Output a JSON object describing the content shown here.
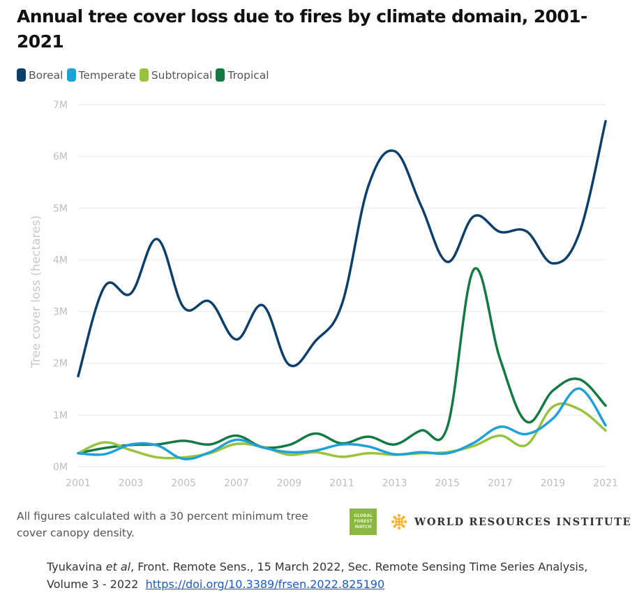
{
  "title": "Annual tree cover loss due to fires by climate domain, 2001-2021",
  "legend": [
    {
      "label": "Boreal",
      "color": "#0d3f6b"
    },
    {
      "label": "Temperate",
      "color": "#1ea0d8"
    },
    {
      "label": "Subtropical",
      "color": "#97c33d"
    },
    {
      "label": "Tropical",
      "color": "#147a44"
    }
  ],
  "chart_data": {
    "type": "line",
    "title": "Annual tree cover loss due to fires by climate domain, 2001-2021",
    "xlabel": "",
    "ylabel": "Tree cover loss (hectares)",
    "ylim": [
      0,
      7000000
    ],
    "y_ticks": [
      0,
      1000000,
      2000000,
      3000000,
      4000000,
      5000000,
      6000000,
      7000000
    ],
    "y_tick_labels": [
      "0M",
      "1M",
      "2M",
      "3M",
      "4M",
      "5M",
      "6M",
      "7M"
    ],
    "x": [
      2001,
      2002,
      2003,
      2004,
      2005,
      2006,
      2007,
      2008,
      2009,
      2010,
      2011,
      2012,
      2013,
      2014,
      2015,
      2016,
      2017,
      2018,
      2019,
      2020,
      2021
    ],
    "x_tick_labels": [
      "2001",
      "2003",
      "2005",
      "2007",
      "2009",
      "2011",
      "2013",
      "2015",
      "2017",
      "2019",
      "2021"
    ],
    "grid": true,
    "legend_position": "top-left",
    "series": [
      {
        "name": "Boreal",
        "color": "#0d3f6b",
        "values": [
          1750000,
          3480000,
          3350000,
          4400000,
          3080000,
          3190000,
          2460000,
          3120000,
          1970000,
          2430000,
          3140000,
          5420000,
          6100000,
          5050000,
          3960000,
          4840000,
          4540000,
          4550000,
          3930000,
          4510000,
          6680000
        ]
      },
      {
        "name": "Temperate",
        "color": "#1ea0d8",
        "values": [
          260000,
          240000,
          430000,
          410000,
          150000,
          280000,
          520000,
          370000,
          280000,
          310000,
          430000,
          390000,
          240000,
          280000,
          260000,
          460000,
          770000,
          630000,
          930000,
          1510000,
          800000
        ]
      },
      {
        "name": "Subtropical",
        "color": "#97c33d",
        "values": [
          260000,
          470000,
          320000,
          180000,
          180000,
          260000,
          440000,
          380000,
          230000,
          280000,
          190000,
          260000,
          230000,
          260000,
          280000,
          400000,
          600000,
          420000,
          1160000,
          1110000,
          700000
        ]
      },
      {
        "name": "Tropical",
        "color": "#147a44",
        "values": [
          260000,
          360000,
          420000,
          430000,
          500000,
          430000,
          600000,
          380000,
          420000,
          640000,
          450000,
          580000,
          430000,
          700000,
          770000,
          3810000,
          2080000,
          870000,
          1470000,
          1690000,
          1180000
        ]
      }
    ]
  },
  "footnote": "All figures calculated with a 30 percent minimum tree cover canopy density.",
  "logos": {
    "gfw_lines": [
      "GLOBAL",
      "FOREST",
      "WATCH"
    ],
    "wri": "WORLD RESOURCES INSTITUTE"
  },
  "citation": {
    "author": "Tyukavina",
    "etal": "et al",
    "rest_line1": ", Front. Remote Sens., 15 March 2022, Sec. Remote Sensing Time Series Analysis,",
    "line2": "Volume 3 - 2022",
    "doi": "https://doi.org/10.3389/frsen.2022.825190"
  }
}
